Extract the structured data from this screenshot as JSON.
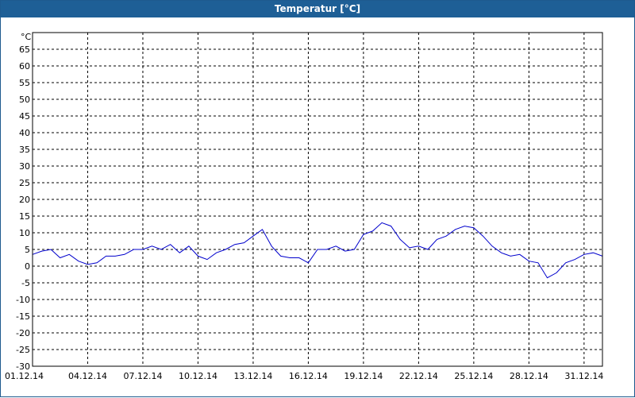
{
  "window": {
    "title": "Temperatur [°C]"
  },
  "chart_data": {
    "type": "line",
    "title": "Temperatur [°C]",
    "ylabel": "°C",
    "xlabel": "",
    "ylim": [
      -30,
      70
    ],
    "yticks": [
      -30,
      -25,
      -20,
      -15,
      -10,
      -5,
      0,
      5,
      10,
      15,
      20,
      25,
      30,
      35,
      40,
      45,
      50,
      55,
      60,
      65
    ],
    "xlim": [
      "01.12.14",
      "01.01.15"
    ],
    "xticks": [
      "01.12.14",
      "04.12.14",
      "07.12.14",
      "10.12.14",
      "13.12.14",
      "16.12.14",
      "19.12.14",
      "22.12.14",
      "25.12.14",
      "28.12.14",
      "31.12.14"
    ],
    "grid": true,
    "series": [
      {
        "color": "#0000cc",
        "x": [
          "01.12.14 00:00",
          "01.12.14 12:00",
          "02.12.14 00:00",
          "02.12.14 12:00",
          "03.12.14 00:00",
          "03.12.14 12:00",
          "04.12.14 00:00",
          "04.12.14 12:00",
          "05.12.14 00:00",
          "05.12.14 12:00",
          "06.12.14 00:00",
          "06.12.14 12:00",
          "07.12.14 00:00",
          "07.12.14 12:00",
          "08.12.14 00:00",
          "08.12.14 12:00",
          "09.12.14 00:00",
          "09.12.14 12:00",
          "10.12.14 00:00",
          "10.12.14 12:00",
          "11.12.14 00:00",
          "11.12.14 12:00",
          "12.12.14 00:00",
          "12.12.14 12:00",
          "13.12.14 00:00",
          "13.12.14 12:00",
          "14.12.14 00:00",
          "14.12.14 12:00",
          "15.12.14 00:00",
          "15.12.14 12:00",
          "16.12.14 00:00",
          "16.12.14 12:00",
          "17.12.14 00:00",
          "17.12.14 12:00",
          "18.12.14 00:00",
          "18.12.14 12:00",
          "19.12.14 00:00",
          "19.12.14 12:00",
          "20.12.14 00:00",
          "20.12.14 12:00",
          "21.12.14 00:00",
          "21.12.14 12:00",
          "22.12.14 00:00",
          "22.12.14 12:00",
          "23.12.14 00:00",
          "23.12.14 12:00",
          "24.12.14 00:00",
          "24.12.14 12:00",
          "25.12.14 00:00",
          "25.12.14 12:00",
          "26.12.14 00:00",
          "26.12.14 12:00",
          "27.12.14 00:00",
          "27.12.14 12:00",
          "28.12.14 00:00",
          "28.12.14 12:00",
          "29.12.14 00:00",
          "29.12.14 12:00",
          "30.12.14 00:00",
          "30.12.14 12:00",
          "31.12.14 00:00",
          "31.12.14 12:00",
          "01.01.15 00:00"
        ],
        "values": [
          3.5,
          4.5,
          5,
          2.5,
          3.5,
          1.5,
          0.5,
          1,
          3,
          3,
          3.5,
          5,
          5,
          6,
          5,
          6.5,
          4,
          6,
          3,
          2,
          4,
          5,
          6.5,
          7,
          9,
          11,
          6,
          3,
          2.5,
          2.5,
          1,
          5,
          5,
          6,
          4.5,
          5,
          9.5,
          10.5,
          13,
          12,
          8,
          5.5,
          6,
          5,
          8,
          9,
          11,
          12,
          11.5,
          9,
          6,
          4,
          3,
          3.5,
          1.5,
          1,
          -3.5,
          -2,
          1,
          2,
          3.5,
          4,
          3
        ]
      }
    ]
  }
}
